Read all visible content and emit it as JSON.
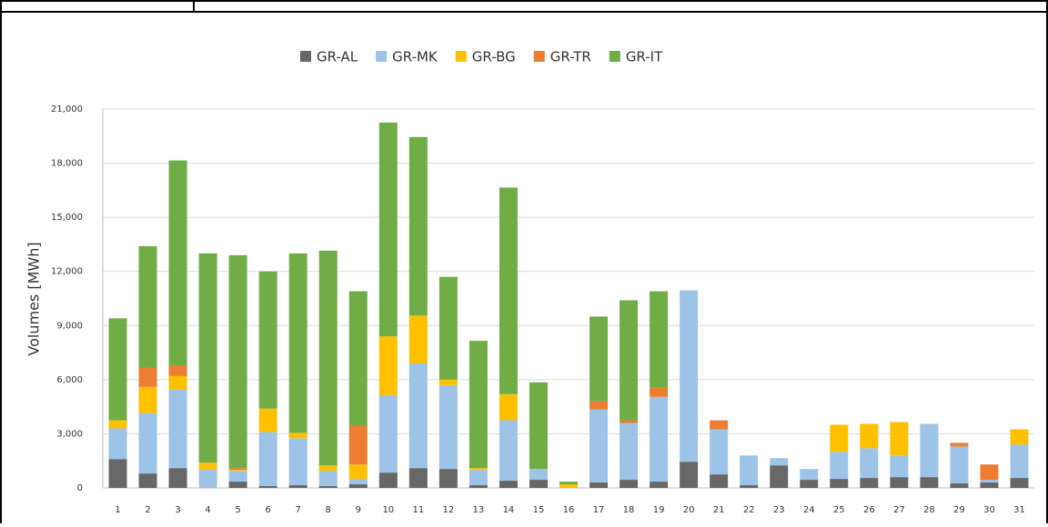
{
  "chart_data": {
    "type": "bar",
    "stacked": true,
    "y_label": "Volumes [MWh]",
    "legend": "top",
    "grid": true,
    "categories": [
      "1",
      "2",
      "3",
      "4",
      "5",
      "6",
      "7",
      "8",
      "9",
      "10",
      "11",
      "12",
      "13",
      "14",
      "15",
      "16",
      "17",
      "18",
      "19",
      "20",
      "21",
      "22",
      "23",
      "24",
      "25",
      "26",
      "27",
      "28",
      "29",
      "30",
      "31"
    ],
    "series": [
      {
        "name": "GR-AL",
        "color": "#676767",
        "values": [
          1600,
          800,
          1100,
          0,
          350,
          100,
          150,
          100,
          200,
          850,
          1100,
          1050,
          150,
          400,
          450,
          0,
          300,
          450,
          350,
          1450,
          750,
          150,
          1250,
          450,
          500,
          550,
          600,
          600,
          250,
          300,
          550
        ]
      },
      {
        "name": "GR-MK",
        "color": "#9dc3e6",
        "values": [
          1700,
          3350,
          4350,
          1000,
          600,
          3000,
          2600,
          850,
          300,
          4300,
          5800,
          4650,
          850,
          3350,
          600,
          0,
          4050,
          3150,
          4700,
          9500,
          2500,
          1650,
          400,
          600,
          1500,
          1650,
          1200,
          2950,
          2050,
          150,
          1850
        ]
      },
      {
        "name": "GR-BG",
        "color": "#ffc000",
        "values": [
          450,
          1450,
          750,
          400,
          50,
          1300,
          300,
          300,
          800,
          3250,
          2650,
          300,
          100,
          1450,
          0,
          200,
          0,
          0,
          0,
          0,
          0,
          0,
          0,
          0,
          1500,
          1350,
          1850,
          0,
          0,
          0,
          850
        ]
      },
      {
        "name": "GR-TR",
        "color": "#ed7d31",
        "values": [
          0,
          1050,
          600,
          0,
          100,
          0,
          0,
          0,
          2150,
          0,
          0,
          0,
          0,
          0,
          0,
          0,
          450,
          150,
          500,
          0,
          500,
          0,
          0,
          0,
          0,
          0,
          0,
          0,
          200,
          850,
          0
        ]
      },
      {
        "name": "GR-IT",
        "color": "#70ad47",
        "values": [
          5650,
          6750,
          11350,
          11600,
          11800,
          7600,
          9950,
          11900,
          7450,
          11850,
          9900,
          5700,
          7050,
          11450,
          4800,
          150,
          4700,
          6650,
          5350,
          0,
          0,
          0,
          0,
          0,
          0,
          0,
          0,
          0,
          0,
          0,
          0
        ]
      }
    ],
    "ylim": [
      0,
      21000
    ],
    "yticks": [
      0,
      {
        "value": 3000,
        "label": "3,000"
      },
      {
        "value": 6000,
        "label": "6,000"
      },
      {
        "value": 9000,
        "label": "9,000"
      },
      {
        "value": 12000,
        "label": "12,000"
      },
      {
        "value": 15000,
        "label": "15,000"
      },
      {
        "value": 18000,
        "label": "18,000"
      },
      {
        "value": 21000,
        "label": "21,000"
      }
    ]
  }
}
